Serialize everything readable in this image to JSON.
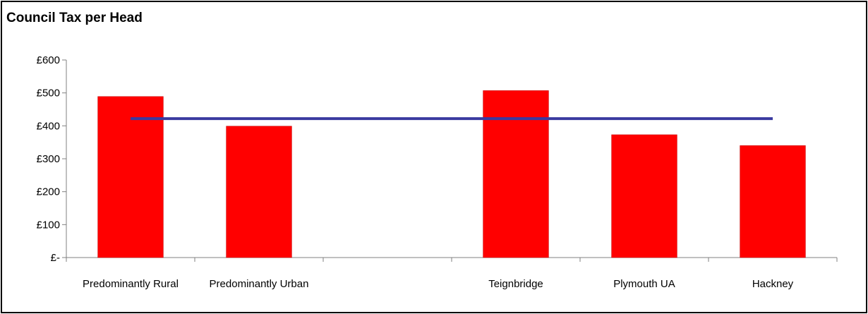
{
  "chart_data": {
    "type": "bar",
    "title": "Council Tax per Head",
    "xlabel": "",
    "ylabel": "",
    "categories": [
      "Predominantly Rural",
      "Predominantly Urban",
      "",
      "Teignbridge",
      "Plymouth UA",
      "Hackney"
    ],
    "series": [
      {
        "type": "bar",
        "values": [
          489,
          399,
          null,
          507,
          373,
          340
        ],
        "color": "#ff0000"
      },
      {
        "type": "line",
        "values": [
          422,
          422,
          422,
          422,
          422,
          422
        ],
        "color": "#3a3aa0"
      }
    ],
    "ylim": [
      0,
      600
    ],
    "yticks": [
      0,
      100,
      200,
      300,
      400,
      500,
      600
    ],
    "ytick_labels": [
      "£-",
      "£100",
      "£200",
      "£300",
      "£400",
      "£500",
      "£600"
    ],
    "grid": false,
    "legend": "none"
  }
}
